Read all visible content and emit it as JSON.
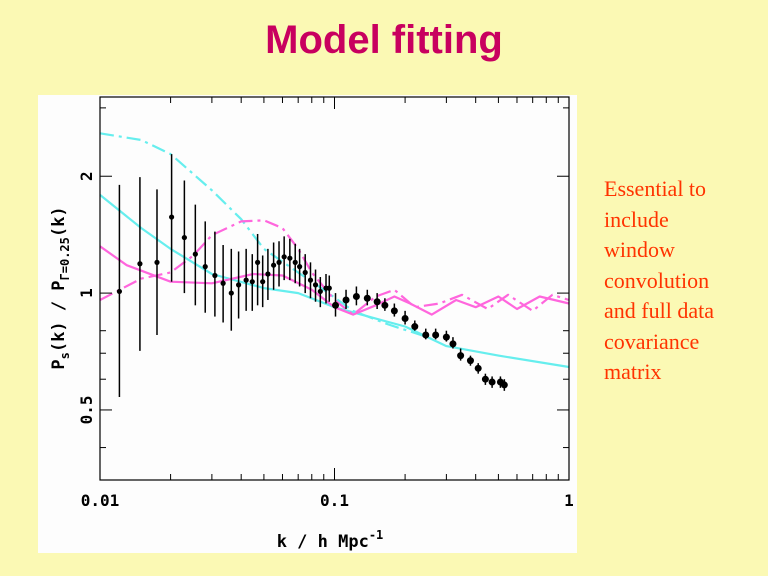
{
  "slide": {
    "title": "Model fitting",
    "side_text_lines": [
      "Essential to",
      "include",
      "window",
      "convolution",
      "and full data",
      "covariance",
      "matrix"
    ],
    "background": "#fbf9b4",
    "title_color": "#c8005f",
    "side_text_color": "#ff3300"
  },
  "chart_data": {
    "type": "scatter",
    "xscale": "log",
    "yscale": "log",
    "xlim": [
      0.01,
      1
    ],
    "ylim": [
      0.33,
      3.2
    ],
    "xticks": [
      "0.01",
      "0.1",
      "1"
    ],
    "yticks": [
      "0.5",
      "1",
      "2"
    ],
    "xlabel": {
      "main": "k / h Mpc",
      "sup": "-1"
    },
    "ylabel": {
      "p1": "P",
      "sub1": "s",
      "p2": "(k) / P",
      "sub2": "Γ=0.25",
      "p3": "(k)"
    },
    "grid": false,
    "colors": {
      "data": "#000000",
      "cyan": "#66eeee",
      "magenta": "#ff66dd"
    },
    "points": {
      "x": [
        0.0121,
        0.0148,
        0.0175,
        0.0202,
        0.0229,
        0.0255,
        0.0281,
        0.0309,
        0.0335,
        0.0363,
        0.039,
        0.042,
        0.0446,
        0.047,
        0.0494,
        0.052,
        0.055,
        0.058,
        0.061,
        0.0645,
        0.068,
        0.071,
        0.075,
        0.079,
        0.083,
        0.087,
        0.092,
        0.095,
        0.101,
        0.112,
        0.124,
        0.138,
        0.152,
        0.164,
        0.18,
        0.2,
        0.22,
        0.245,
        0.27,
        0.3,
        0.32,
        0.345,
        0.38,
        0.41,
        0.44,
        0.47,
        0.51,
        0.53
      ],
      "y": [
        1.01,
        1.19,
        1.2,
        1.57,
        1.39,
        1.26,
        1.17,
        1.11,
        1.06,
        1.0,
        1.05,
        1.08,
        1.07,
        1.2,
        1.07,
        1.12,
        1.18,
        1.2,
        1.24,
        1.23,
        1.2,
        1.17,
        1.13,
        1.08,
        1.05,
        1.01,
        1.03,
        1.03,
        0.93,
        0.96,
        0.98,
        0.97,
        0.95,
        0.93,
        0.9,
        0.86,
        0.82,
        0.78,
        0.78,
        0.77,
        0.74,
        0.69,
        0.67,
        0.64,
        0.6,
        0.59,
        0.59,
        0.58
      ],
      "y_low": [
        0.54,
        0.71,
        0.78,
        1.07,
        1.0,
        0.93,
        0.89,
        0.87,
        0.84,
        0.8,
        0.86,
        0.9,
        0.9,
        0.93,
        0.92,
        0.96,
        1.02,
        1.04,
        1.08,
        1.08,
        1.06,
        1.04,
        1.0,
        0.97,
        0.95,
        0.92,
        0.94,
        0.95,
        0.87,
        0.91,
        0.93,
        0.93,
        0.91,
        0.9,
        0.87,
        0.83,
        0.8,
        0.76,
        0.76,
        0.75,
        0.72,
        0.67,
        0.65,
        0.62,
        0.58,
        0.57,
        0.57,
        0.56
      ],
      "y_high": [
        1.9,
        1.99,
        1.85,
        2.28,
        1.95,
        1.69,
        1.53,
        1.44,
        1.33,
        1.3,
        1.28,
        1.3,
        1.26,
        1.42,
        1.25,
        1.3,
        1.35,
        1.36,
        1.4,
        1.38,
        1.34,
        1.3,
        1.26,
        1.2,
        1.15,
        1.1,
        1.12,
        1.11,
        1.0,
        1.02,
        1.04,
        1.02,
        1.0,
        0.97,
        0.94,
        0.9,
        0.85,
        0.81,
        0.81,
        0.8,
        0.77,
        0.72,
        0.69,
        0.66,
        0.62,
        0.61,
        0.61,
        0.6
      ]
    },
    "series": [
      {
        "style": "cyan-solid",
        "x": [
          0.01,
          0.015,
          0.02,
          0.03,
          0.05,
          0.07,
          0.1,
          0.13,
          0.2,
          0.3,
          0.5,
          1
        ],
        "y": [
          1.79,
          1.47,
          1.3,
          1.12,
          1.03,
          1.0,
          0.92,
          0.88,
          0.82,
          0.73,
          0.69,
          0.645
        ]
      },
      {
        "style": "cyan-dashdot",
        "x": [
          0.01,
          0.015,
          0.02,
          0.03,
          0.04,
          0.05,
          0.07,
          0.09,
          0.12,
          0.17,
          0.25
        ],
        "y": [
          2.58,
          2.48,
          2.28,
          1.84,
          1.55,
          1.3,
          1.13,
          1.02,
          0.9,
          0.83,
          0.77
        ]
      },
      {
        "style": "magenta-solid",
        "x": [
          0.01,
          0.013,
          0.02,
          0.03,
          0.045,
          0.06,
          0.08,
          0.1,
          0.12,
          0.15,
          0.18,
          0.21,
          0.26,
          0.33,
          0.4,
          0.5,
          0.6,
          0.75,
          1
        ],
        "y": [
          1.32,
          1.18,
          1.07,
          1.06,
          1.12,
          1.11,
          1.02,
          0.92,
          0.88,
          0.93,
          0.98,
          0.94,
          0.88,
          0.96,
          0.92,
          0.98,
          0.91,
          0.98,
          0.94
        ]
      },
      {
        "style": "magenta-dashdot",
        "x": [
          0.01,
          0.015,
          0.02,
          0.025,
          0.03,
          0.04,
          0.05,
          0.06,
          0.07,
          0.08,
          0.1,
          0.12,
          0.15,
          0.18,
          0.22,
          0.28,
          0.35,
          0.45,
          0.55,
          0.7,
          0.85,
          1
        ],
        "y": [
          0.96,
          1.09,
          1.13,
          1.25,
          1.41,
          1.53,
          1.54,
          1.47,
          1.3,
          1.13,
          0.96,
          0.88,
          0.98,
          1.02,
          0.92,
          0.94,
          0.99,
          0.91,
          0.99,
          0.9,
          0.99,
          0.96
        ]
      }
    ]
  }
}
